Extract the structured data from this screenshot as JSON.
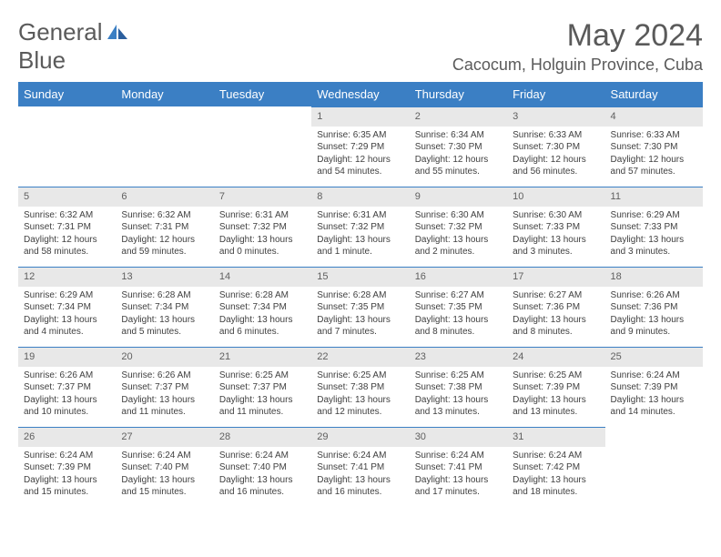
{
  "logo": {
    "line1": "General",
    "line2": "Blue"
  },
  "title": "May 2024",
  "location": "Cacocum, Holguin Province, Cuba",
  "colors": {
    "header_bg": "#3b7fc4",
    "header_fg": "#ffffff",
    "daynum_bg": "#e8e8e8",
    "border": "#3b7fc4",
    "text": "#404040",
    "title_color": "#5a5a5a"
  },
  "typography": {
    "title_fontsize": 34,
    "location_fontsize": 18,
    "weekday_fontsize": 13,
    "cell_fontsize": 10
  },
  "weekdays": [
    "Sunday",
    "Monday",
    "Tuesday",
    "Wednesday",
    "Thursday",
    "Friday",
    "Saturday"
  ],
  "weeks": [
    [
      {
        "n": "",
        "sr": "",
        "ss": "",
        "dl": ""
      },
      {
        "n": "",
        "sr": "",
        "ss": "",
        "dl": ""
      },
      {
        "n": "",
        "sr": "",
        "ss": "",
        "dl": ""
      },
      {
        "n": "1",
        "sr": "Sunrise: 6:35 AM",
        "ss": "Sunset: 7:29 PM",
        "dl": "Daylight: 12 hours and 54 minutes."
      },
      {
        "n": "2",
        "sr": "Sunrise: 6:34 AM",
        "ss": "Sunset: 7:30 PM",
        "dl": "Daylight: 12 hours and 55 minutes."
      },
      {
        "n": "3",
        "sr": "Sunrise: 6:33 AM",
        "ss": "Sunset: 7:30 PM",
        "dl": "Daylight: 12 hours and 56 minutes."
      },
      {
        "n": "4",
        "sr": "Sunrise: 6:33 AM",
        "ss": "Sunset: 7:30 PM",
        "dl": "Daylight: 12 hours and 57 minutes."
      }
    ],
    [
      {
        "n": "5",
        "sr": "Sunrise: 6:32 AM",
        "ss": "Sunset: 7:31 PM",
        "dl": "Daylight: 12 hours and 58 minutes."
      },
      {
        "n": "6",
        "sr": "Sunrise: 6:32 AM",
        "ss": "Sunset: 7:31 PM",
        "dl": "Daylight: 12 hours and 59 minutes."
      },
      {
        "n": "7",
        "sr": "Sunrise: 6:31 AM",
        "ss": "Sunset: 7:32 PM",
        "dl": "Daylight: 13 hours and 0 minutes."
      },
      {
        "n": "8",
        "sr": "Sunrise: 6:31 AM",
        "ss": "Sunset: 7:32 PM",
        "dl": "Daylight: 13 hours and 1 minute."
      },
      {
        "n": "9",
        "sr": "Sunrise: 6:30 AM",
        "ss": "Sunset: 7:32 PM",
        "dl": "Daylight: 13 hours and 2 minutes."
      },
      {
        "n": "10",
        "sr": "Sunrise: 6:30 AM",
        "ss": "Sunset: 7:33 PM",
        "dl": "Daylight: 13 hours and 3 minutes."
      },
      {
        "n": "11",
        "sr": "Sunrise: 6:29 AM",
        "ss": "Sunset: 7:33 PM",
        "dl": "Daylight: 13 hours and 3 minutes."
      }
    ],
    [
      {
        "n": "12",
        "sr": "Sunrise: 6:29 AM",
        "ss": "Sunset: 7:34 PM",
        "dl": "Daylight: 13 hours and 4 minutes."
      },
      {
        "n": "13",
        "sr": "Sunrise: 6:28 AM",
        "ss": "Sunset: 7:34 PM",
        "dl": "Daylight: 13 hours and 5 minutes."
      },
      {
        "n": "14",
        "sr": "Sunrise: 6:28 AM",
        "ss": "Sunset: 7:34 PM",
        "dl": "Daylight: 13 hours and 6 minutes."
      },
      {
        "n": "15",
        "sr": "Sunrise: 6:28 AM",
        "ss": "Sunset: 7:35 PM",
        "dl": "Daylight: 13 hours and 7 minutes."
      },
      {
        "n": "16",
        "sr": "Sunrise: 6:27 AM",
        "ss": "Sunset: 7:35 PM",
        "dl": "Daylight: 13 hours and 8 minutes."
      },
      {
        "n": "17",
        "sr": "Sunrise: 6:27 AM",
        "ss": "Sunset: 7:36 PM",
        "dl": "Daylight: 13 hours and 8 minutes."
      },
      {
        "n": "18",
        "sr": "Sunrise: 6:26 AM",
        "ss": "Sunset: 7:36 PM",
        "dl": "Daylight: 13 hours and 9 minutes."
      }
    ],
    [
      {
        "n": "19",
        "sr": "Sunrise: 6:26 AM",
        "ss": "Sunset: 7:37 PM",
        "dl": "Daylight: 13 hours and 10 minutes."
      },
      {
        "n": "20",
        "sr": "Sunrise: 6:26 AM",
        "ss": "Sunset: 7:37 PM",
        "dl": "Daylight: 13 hours and 11 minutes."
      },
      {
        "n": "21",
        "sr": "Sunrise: 6:25 AM",
        "ss": "Sunset: 7:37 PM",
        "dl": "Daylight: 13 hours and 11 minutes."
      },
      {
        "n": "22",
        "sr": "Sunrise: 6:25 AM",
        "ss": "Sunset: 7:38 PM",
        "dl": "Daylight: 13 hours and 12 minutes."
      },
      {
        "n": "23",
        "sr": "Sunrise: 6:25 AM",
        "ss": "Sunset: 7:38 PM",
        "dl": "Daylight: 13 hours and 13 minutes."
      },
      {
        "n": "24",
        "sr": "Sunrise: 6:25 AM",
        "ss": "Sunset: 7:39 PM",
        "dl": "Daylight: 13 hours and 13 minutes."
      },
      {
        "n": "25",
        "sr": "Sunrise: 6:24 AM",
        "ss": "Sunset: 7:39 PM",
        "dl": "Daylight: 13 hours and 14 minutes."
      }
    ],
    [
      {
        "n": "26",
        "sr": "Sunrise: 6:24 AM",
        "ss": "Sunset: 7:39 PM",
        "dl": "Daylight: 13 hours and 15 minutes."
      },
      {
        "n": "27",
        "sr": "Sunrise: 6:24 AM",
        "ss": "Sunset: 7:40 PM",
        "dl": "Daylight: 13 hours and 15 minutes."
      },
      {
        "n": "28",
        "sr": "Sunrise: 6:24 AM",
        "ss": "Sunset: 7:40 PM",
        "dl": "Daylight: 13 hours and 16 minutes."
      },
      {
        "n": "29",
        "sr": "Sunrise: 6:24 AM",
        "ss": "Sunset: 7:41 PM",
        "dl": "Daylight: 13 hours and 16 minutes."
      },
      {
        "n": "30",
        "sr": "Sunrise: 6:24 AM",
        "ss": "Sunset: 7:41 PM",
        "dl": "Daylight: 13 hours and 17 minutes."
      },
      {
        "n": "31",
        "sr": "Sunrise: 6:24 AM",
        "ss": "Sunset: 7:42 PM",
        "dl": "Daylight: 13 hours and 18 minutes."
      },
      {
        "n": "",
        "sr": "",
        "ss": "",
        "dl": ""
      }
    ]
  ]
}
